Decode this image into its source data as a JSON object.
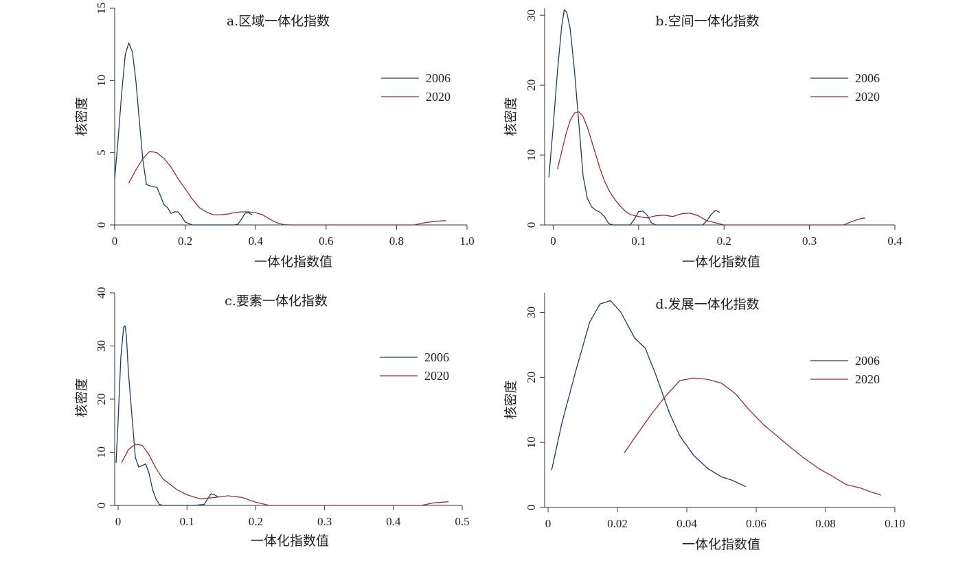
{
  "colors": {
    "series_2006": "#1f3b5c",
    "series_2020": "#8a2f3a",
    "axis": "#333333"
  },
  "chart_data": [
    {
      "id": "a",
      "type": "line",
      "title": "a.区域一体化指数",
      "xlabel": "一体化指数值",
      "ylabel": "核密度",
      "xlim": [
        0,
        1.0
      ],
      "ylim": [
        0,
        15
      ],
      "xticks": [
        0,
        0.2,
        0.4,
        0.6,
        0.8,
        1.0
      ],
      "xtick_labels": [
        "0",
        "0.2",
        "0.4",
        "0.6",
        "0.8",
        "1.0"
      ],
      "yticks": [
        0,
        5,
        10,
        15
      ],
      "ytick_labels": [
        "0",
        "5",
        "10",
        "15"
      ],
      "legend_position": "right",
      "series": [
        {
          "name": "2006",
          "color": "#1f3b5c",
          "x": [
            0.0,
            0.01,
            0.02,
            0.03,
            0.04,
            0.05,
            0.06,
            0.07,
            0.08,
            0.09,
            0.1,
            0.12,
            0.13,
            0.14,
            0.15,
            0.16,
            0.17,
            0.18,
            0.19,
            0.2,
            0.22,
            0.26,
            0.3,
            0.34,
            0.35,
            0.36,
            0.37,
            0.38,
            0.39
          ],
          "y": [
            3.2,
            6.0,
            9.2,
            11.8,
            12.6,
            12.0,
            10.0,
            7.2,
            4.5,
            2.8,
            2.7,
            2.6,
            2.0,
            1.4,
            1.2,
            0.8,
            0.9,
            0.9,
            0.6,
            0.2,
            0.0,
            0.0,
            0.0,
            0.0,
            0.05,
            0.4,
            0.8,
            0.85,
            0.7
          ]
        },
        {
          "name": "2020",
          "color": "#8a2f3a",
          "x": [
            0.04,
            0.06,
            0.08,
            0.1,
            0.12,
            0.14,
            0.16,
            0.18,
            0.2,
            0.22,
            0.24,
            0.26,
            0.28,
            0.3,
            0.32,
            0.34,
            0.36,
            0.38,
            0.4,
            0.42,
            0.44,
            0.46,
            0.48,
            0.5,
            0.6,
            0.7,
            0.8,
            0.85,
            0.88,
            0.91,
            0.94
          ],
          "y": [
            2.9,
            3.8,
            4.6,
            5.1,
            5.0,
            4.6,
            4.0,
            3.2,
            2.5,
            1.8,
            1.2,
            0.9,
            0.7,
            0.7,
            0.75,
            0.85,
            0.9,
            0.9,
            0.85,
            0.7,
            0.4,
            0.15,
            0.02,
            0.0,
            0.0,
            0.0,
            0.0,
            0.0,
            0.15,
            0.25,
            0.3
          ]
        }
      ]
    },
    {
      "id": "b",
      "type": "line",
      "title": "b.空间一体化指数",
      "xlabel": "一体化指数值",
      "ylabel": "核密度",
      "xlim": [
        -0.01,
        0.4
      ],
      "ylim": [
        0,
        31
      ],
      "xticks": [
        0,
        0.1,
        0.2,
        0.3,
        0.4
      ],
      "xtick_labels": [
        "0",
        "0.1",
        "0.2",
        "0.3",
        "0.4"
      ],
      "yticks": [
        0,
        10,
        20,
        30
      ],
      "ytick_labels": [
        "0",
        "10",
        "20",
        "30"
      ],
      "legend_position": "right",
      "series": [
        {
          "name": "2006",
          "color": "#1f3b5c",
          "x": [
            -0.005,
            0.0,
            0.005,
            0.01,
            0.013,
            0.016,
            0.02,
            0.025,
            0.03,
            0.035,
            0.04,
            0.045,
            0.05,
            0.055,
            0.06,
            0.065,
            0.07,
            0.09,
            0.095,
            0.1,
            0.105,
            0.11,
            0.115,
            0.12,
            0.15,
            0.175,
            0.18,
            0.185,
            0.19,
            0.195
          ],
          "y": [
            6.8,
            14.0,
            22.0,
            28.5,
            30.8,
            30.4,
            28.0,
            22.0,
            14.5,
            7.0,
            3.8,
            2.6,
            2.1,
            1.8,
            1.2,
            0.2,
            0.0,
            0.0,
            0.8,
            1.9,
            2.0,
            1.4,
            0.3,
            0.0,
            0.0,
            0.0,
            0.6,
            1.5,
            2.1,
            1.8
          ]
        },
        {
          "name": "2020",
          "color": "#8a2f3a",
          "x": [
            0.005,
            0.01,
            0.015,
            0.02,
            0.025,
            0.03,
            0.035,
            0.04,
            0.045,
            0.05,
            0.055,
            0.06,
            0.065,
            0.07,
            0.075,
            0.08,
            0.085,
            0.09,
            0.1,
            0.11,
            0.12,
            0.13,
            0.14,
            0.15,
            0.16,
            0.17,
            0.18,
            0.2,
            0.25,
            0.3,
            0.34,
            0.35,
            0.36,
            0.365
          ],
          "y": [
            8.0,
            10.5,
            13.0,
            15.0,
            16.0,
            16.2,
            15.5,
            14.0,
            12.0,
            10.0,
            8.0,
            6.3,
            5.0,
            4.0,
            3.2,
            2.5,
            1.9,
            1.5,
            1.2,
            1.0,
            1.3,
            1.4,
            1.2,
            1.6,
            1.7,
            1.3,
            0.6,
            0.0,
            0.0,
            0.0,
            0.0,
            0.5,
            0.9,
            1.0
          ]
        }
      ]
    },
    {
      "id": "c",
      "type": "line",
      "title": "c.要素一体化指数",
      "xlabel": "一体化指数值",
      "ylabel": "核密度",
      "xlim": [
        -0.005,
        0.5
      ],
      "ylim": [
        0,
        40
      ],
      "xticks": [
        0,
        0.1,
        0.2,
        0.3,
        0.4,
        0.5
      ],
      "xtick_labels": [
        "0",
        "0.1",
        "0.2",
        "0.3",
        "0.4",
        "0.5"
      ],
      "yticks": [
        0,
        10,
        20,
        30,
        40
      ],
      "ytick_labels": [
        "0",
        "10",
        "20",
        "30",
        "40"
      ],
      "legend_position": "right",
      "series": [
        {
          "name": "2006",
          "color": "#1f3b5c",
          "x": [
            -0.003,
            0.0,
            0.004,
            0.008,
            0.01,
            0.012,
            0.015,
            0.02,
            0.025,
            0.03,
            0.035,
            0.04,
            0.045,
            0.05,
            0.055,
            0.06,
            0.065,
            0.07,
            0.09,
            0.11,
            0.125,
            0.13,
            0.135,
            0.14,
            0.145
          ],
          "y": [
            8.0,
            16.0,
            28.0,
            33.5,
            33.8,
            32.0,
            25.0,
            17.0,
            9.0,
            7.2,
            7.5,
            7.8,
            6.0,
            3.0,
            1.2,
            0.2,
            0.0,
            0.0,
            0.0,
            0.0,
            0.2,
            1.2,
            2.2,
            2.0,
            1.6
          ]
        },
        {
          "name": "2020",
          "color": "#8a2f3a",
          "x": [
            0.005,
            0.015,
            0.025,
            0.035,
            0.045,
            0.055,
            0.065,
            0.075,
            0.085,
            0.1,
            0.12,
            0.14,
            0.16,
            0.18,
            0.2,
            0.22,
            0.3,
            0.4,
            0.44,
            0.46,
            0.48
          ],
          "y": [
            8.0,
            10.5,
            11.5,
            11.3,
            9.5,
            7.0,
            5.0,
            4.0,
            3.0,
            2.0,
            1.2,
            1.5,
            1.8,
            1.5,
            0.6,
            0.0,
            0.0,
            0.0,
            0.0,
            0.5,
            0.7
          ]
        }
      ]
    },
    {
      "id": "d",
      "type": "line",
      "title": "d.发展一体化指数",
      "xlabel": "一体化指数值",
      "ylabel": "核密度",
      "xlim": [
        -0.001,
        0.1
      ],
      "ylim": [
        0,
        33
      ],
      "xticks": [
        0,
        0.02,
        0.04,
        0.06,
        0.08,
        0.1
      ],
      "xtick_labels": [
        "0",
        "0.02",
        "0.04",
        "0.06",
        "0.08",
        "0.10"
      ],
      "yticks": [
        0,
        10,
        20,
        30
      ],
      "ytick_labels": [
        "0",
        "10",
        "20",
        "30"
      ],
      "legend_position": "right",
      "series": [
        {
          "name": "2006",
          "color": "#1f3b5c",
          "x": [
            0.001,
            0.004,
            0.008,
            0.012,
            0.015,
            0.018,
            0.021,
            0.025,
            0.028,
            0.031,
            0.035,
            0.038,
            0.042,
            0.046,
            0.05,
            0.053,
            0.057
          ],
          "y": [
            5.7,
            13.0,
            21.0,
            28.5,
            31.3,
            31.8,
            30.0,
            26.0,
            24.5,
            20.5,
            14.5,
            11.0,
            8.0,
            6.0,
            4.7,
            4.2,
            3.2
          ]
        },
        {
          "name": "2020",
          "color": "#8a2f3a",
          "x": [
            0.022,
            0.026,
            0.03,
            0.034,
            0.038,
            0.042,
            0.046,
            0.05,
            0.054,
            0.058,
            0.062,
            0.066,
            0.07,
            0.074,
            0.078,
            0.082,
            0.086,
            0.09,
            0.093,
            0.096
          ],
          "y": [
            8.4,
            11.5,
            14.5,
            17.2,
            19.5,
            19.9,
            19.7,
            19.1,
            17.5,
            15.0,
            12.8,
            11.0,
            9.2,
            7.5,
            6.0,
            4.8,
            3.5,
            3.0,
            2.4,
            1.9
          ]
        }
      ]
    }
  ]
}
